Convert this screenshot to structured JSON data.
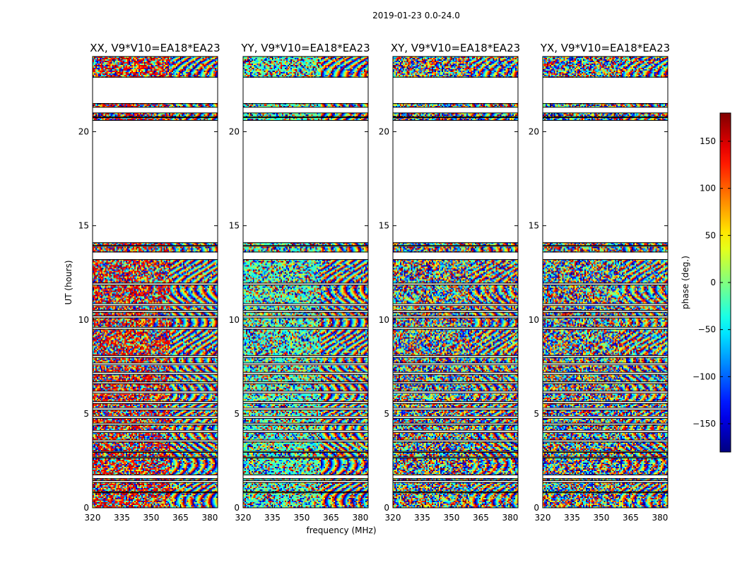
{
  "chart_data": {
    "type": "heatmap",
    "suptitle": "2019-01-23 0.0-24.0",
    "xlabel": "frequency (MHz)",
    "ylabel": "UT (hours)",
    "xlim": [
      320,
      384
    ],
    "ylim": [
      0,
      24
    ],
    "xticks": [
      320,
      335,
      350,
      365,
      380
    ],
    "yticks": [
      0,
      5,
      10,
      15,
      20
    ],
    "panels": [
      {
        "title": "XX, V9*V10=EA18*EA23",
        "mode": "XX"
      },
      {
        "title": "YY, V9*V10=EA18*EA23",
        "mode": "YY"
      },
      {
        "title": "XY, V9*V10=EA18*EA23",
        "mode": "XY"
      },
      {
        "title": "YX, V9*V10=EA18*EA23",
        "mode": "YX"
      }
    ],
    "colorbar": {
      "label": "phase (deg.)",
      "range": [
        -180,
        180
      ],
      "ticks": [
        -150,
        -100,
        -50,
        0,
        50,
        100,
        150
      ],
      "colormap": "jet"
    },
    "data_intervals_hours": [
      [
        0.0,
        0.8
      ],
      [
        0.85,
        1.35
      ],
      [
        1.45,
        1.55
      ],
      [
        1.75,
        2.65
      ],
      [
        2.7,
        2.95
      ],
      [
        3.0,
        3.5
      ],
      [
        3.6,
        4.0
      ],
      [
        4.1,
        4.4
      ],
      [
        4.5,
        4.75
      ],
      [
        4.85,
        5.2
      ],
      [
        5.3,
        5.55
      ],
      [
        5.65,
        6.1
      ],
      [
        6.2,
        6.6
      ],
      [
        6.7,
        7.1
      ],
      [
        7.2,
        7.6
      ],
      [
        7.7,
        8.0
      ],
      [
        8.1,
        9.5
      ],
      [
        9.6,
        10.1
      ],
      [
        10.2,
        10.4
      ],
      [
        10.5,
        10.75
      ],
      [
        10.85,
        11.85
      ],
      [
        11.95,
        13.2
      ],
      [
        13.6,
        13.9
      ],
      [
        13.95,
        14.1
      ],
      [
        20.6,
        20.75
      ],
      [
        20.8,
        21.0
      ],
      [
        21.3,
        21.5
      ],
      [
        22.9,
        24.0
      ]
    ]
  }
}
